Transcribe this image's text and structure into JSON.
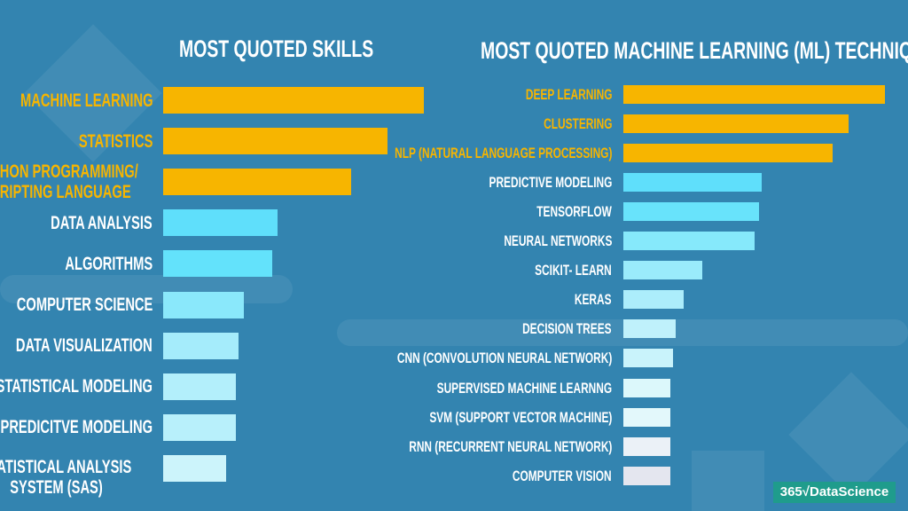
{
  "chart_data": [
    {
      "type": "bar",
      "orientation": "horizontal",
      "title": "MOST QUOTED SKILLS",
      "categories": [
        "MACHINE LEARNING",
        "STATISTICS",
        "PYTHON PROGRAMMING/ SCRIPTING LANGUAGE",
        "DATA ANALYSIS",
        "ALGORITHMS",
        "COMPUTER SCIENCE",
        "DATA VISUALIZATION",
        "STATISTICAL MODELING",
        "PREDICITVE MODELING",
        "STATISTICAL ANALYSIS SYSTEM (SAS)"
      ],
      "values": [
        100,
        86,
        72,
        44,
        42,
        31,
        29,
        28,
        28,
        24
      ],
      "value_unit": "relative bar length (% of longest)",
      "colors": [
        "#f7b500",
        "#f7b500",
        "#f7b500",
        "#5fdffb",
        "#63e2fb",
        "#8ae8fb",
        "#a5ecfb",
        "#b3effb",
        "#b8f0fb",
        "#ccf4fb"
      ],
      "label_colors": [
        "#f7b500",
        "#f7b500",
        "#f7b500",
        "#ffffff",
        "#ffffff",
        "#ffffff",
        "#ffffff",
        "#ffffff",
        "#ffffff",
        "#ffffff"
      ],
      "axes_shown": false,
      "grid": false
    },
    {
      "type": "bar",
      "orientation": "horizontal",
      "title": "MOST QUOTED  MACHINE LEARNING (ML) TECHNIQUES",
      "categories": [
        "DEEP LEARNING",
        "CLUSTERING",
        "NLP (NATURAL LANGUAGE PROCESSING)",
        "PREDICTIVE MODELING",
        "TENSORFLOW",
        "NEURAL NETWORKS",
        "SCIKIT- LEARN",
        "KERAS",
        "DECISION TREES",
        "CNN (CONVOLUTION NEURAL NETWORK)",
        "SUPERVISED MACHINE LEARNNG",
        "SVM (SUPPORT VECTOR MACHINE)",
        "RNN (RECURRENT NEURAL NETWORK)",
        "COMPUTER VISION"
      ],
      "values": [
        100,
        86,
        80,
        53,
        52,
        50,
        30,
        23,
        20,
        19,
        18,
        18,
        18,
        18
      ],
      "value_unit": "relative bar length (% of longest)",
      "colors": [
        "#f7b500",
        "#f7b500",
        "#f7b500",
        "#5fdffb",
        "#68e3fb",
        "#86e9fb",
        "#9aebfb",
        "#acedfb",
        "#bff1fb",
        "#c9f3fb",
        "#dcf8fb",
        "#e3f8fb",
        "#ebf1f7",
        "#e4e6ef"
      ],
      "label_colors": [
        "#f7b500",
        "#f7b500",
        "#f7b500",
        "#ffffff",
        "#ffffff",
        "#ffffff",
        "#ffffff",
        "#ffffff",
        "#ffffff",
        "#ffffff",
        "#ffffff",
        "#ffffff",
        "#ffffff",
        "#ffffff"
      ],
      "axes_shown": false,
      "grid": false
    }
  ],
  "background_color": "#3384b0",
  "logo": {
    "text": "365√DataScience"
  }
}
